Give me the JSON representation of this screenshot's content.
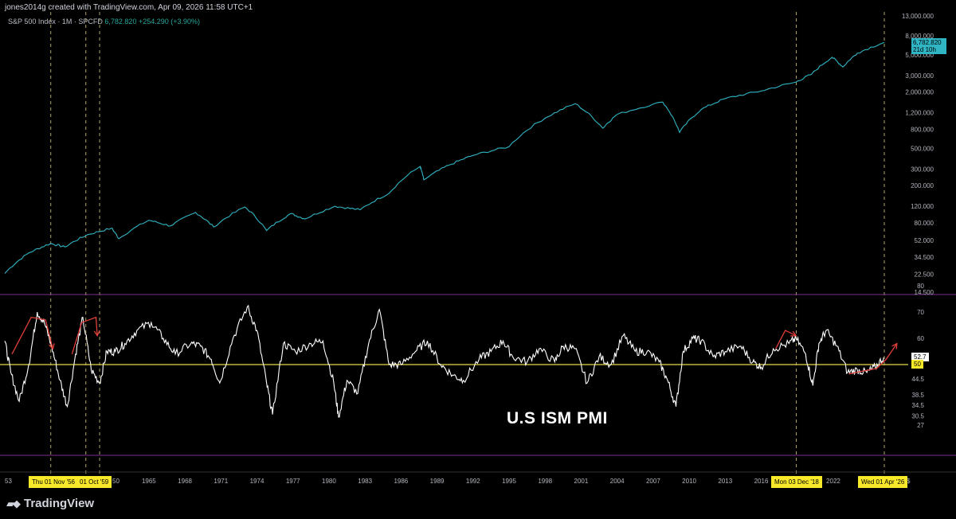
{
  "header": {
    "watermark": "jones2014g created with TradingView.com, Apr 09, 2026 11:58 UTC+1"
  },
  "legend": {
    "symbol": "S&P 500 Index · 1M · SPCFD",
    "last": "6,782.820",
    "change": "+254.290 (+3.90%)"
  },
  "colors": {
    "sp500_line": "#2fb5c4",
    "pmi_line": "#ffffff",
    "level50": "#e8d84a",
    "guides": "#cfc07a",
    "annotation": "#e0403a",
    "separator": "#7b2f8e"
  },
  "price_badge": {
    "value": "6,782.820",
    "countdown": "21d 10h"
  },
  "pmi_badges": {
    "current": "52.7",
    "level": "50"
  },
  "pmi_title": "U.S ISM PMI",
  "date_tags": [
    "Thu 01 Nov '56",
    "01 Oct '59",
    "Mon 03 Dec '18",
    "Wed 01 Apr '26"
  ],
  "x_axis_edge_labels": {
    "left_cut": "53",
    "after_tag": "50",
    "right_cut": "$"
  },
  "branding": "TradingView",
  "chart_data": [
    {
      "type": "line",
      "title": "S&P 500 Index · 1M · SPCFD",
      "scale": "log",
      "y_ticks": [
        "13,000.000",
        "8,000.000",
        "5,000.000",
        "3,000.000",
        "2,000.000",
        "1,200.000",
        "800.000",
        "500.000",
        "300.000",
        "200.000",
        "120.000",
        "80.000",
        "52.000",
        "34.500",
        "22.500",
        "14.500"
      ],
      "y_tick_values": [
        13000,
        8000,
        5000,
        3000,
        2000,
        1200,
        800,
        500,
        300,
        200,
        120,
        80,
        52,
        34.5,
        22.5,
        14.5
      ],
      "x": [
        1953,
        1955,
        1956.8,
        1958,
        1959.8,
        1961.9,
        1962.5,
        1965,
        1966.8,
        1968.9,
        1970.4,
        1973,
        1974.8,
        1976.8,
        1978,
        1980.5,
        1982.6,
        1985,
        1987.6,
        1987.9,
        1990,
        1992,
        1995,
        1998,
        2000.5,
        2002.8,
        2004,
        2007.8,
        2009.2,
        2011,
        2013,
        2016,
        2018.9,
        2020.2,
        2021.9,
        2022.8,
        2024,
        2026.25
      ],
      "values": [
        23,
        38,
        48,
        44,
        59,
        70,
        54,
        85,
        74,
        103,
        72,
        118,
        66,
        100,
        88,
        120,
        110,
        165,
        320,
        230,
        330,
        420,
        520,
        1050,
        1500,
        820,
        1150,
        1560,
        740,
        1300,
        1700,
        2050,
        2550,
        3100,
        4700,
        3700,
        5200,
        6782.82
      ],
      "last_label": "6,782.820"
    },
    {
      "type": "line",
      "title": "U.S ISM PMI",
      "y_ticks": [
        "80",
        "70",
        "60",
        "52.7",
        "50",
        "44.5",
        "38.5",
        "34.5",
        "30.5",
        "27"
      ],
      "y_tick_values": [
        80,
        70,
        60,
        52.7,
        50,
        44.5,
        38.5,
        34.5,
        30.5,
        27
      ],
      "reference_level": 50,
      "x_ticks": [
        "1965",
        "1968",
        "1971",
        "1974",
        "1977",
        "1980",
        "1983",
        "1986",
        "1989",
        "1992",
        "1995",
        "1998",
        "2001",
        "2004",
        "2007",
        "2010",
        "2013",
        "2016",
        "2022"
      ],
      "x": [
        1953,
        1953.5,
        1954.2,
        1955,
        1955.7,
        1956.3,
        1956.9,
        1957.6,
        1958.2,
        1958.9,
        1959.5,
        1960.2,
        1960.9,
        1961.5,
        1962.2,
        1963,
        1964,
        1965.2,
        1966.2,
        1967.2,
        1968.5,
        1969.3,
        1970.2,
        1970.9,
        1972,
        1973.2,
        1974,
        1974.8,
        1975.3,
        1976.2,
        1977.2,
        1978.5,
        1979.5,
        1980.4,
        1980.8,
        1981.5,
        1982.4,
        1983.3,
        1984.2,
        1985,
        1986,
        1987.2,
        1988.2,
        1989.3,
        1990.3,
        1991.2,
        1992.5,
        1993.5,
        1994.5,
        1995.3,
        1996.5,
        1997.5,
        1998.8,
        1999.5,
        2000.5,
        2001.5,
        2002.5,
        2003.5,
        2004.5,
        2005.5,
        2006.5,
        2007.5,
        2008.2,
        2008.9,
        2009.5,
        2010.3,
        2011,
        2012,
        2013,
        2014.3,
        2015.3,
        2016,
        2017,
        2018.3,
        2018.9,
        2019.7,
        2020.3,
        2020.8,
        2021.4,
        2022.3,
        2023.2,
        2024,
        2024.8,
        2025.5,
        2026.2
      ],
      "values": [
        59,
        47,
        36,
        50,
        70,
        66,
        57,
        44,
        34,
        54,
        68,
        48,
        43,
        55,
        55,
        58,
        63,
        66,
        60,
        54,
        58,
        57,
        52,
        43,
        60,
        72,
        63,
        43,
        31,
        58,
        55,
        58,
        59,
        43,
        30,
        44,
        39,
        58,
        71,
        50,
        50,
        55,
        59,
        50,
        46,
        44,
        52,
        55,
        59,
        53,
        51,
        56,
        51,
        57,
        56,
        43,
        53,
        50,
        61,
        55,
        55,
        51,
        44,
        34,
        55,
        60,
        59,
        53,
        55,
        57,
        51,
        49,
        56,
        58,
        60,
        54,
        42,
        58,
        63,
        57,
        47,
        48,
        47,
        49,
        52.7
      ]
    }
  ]
}
